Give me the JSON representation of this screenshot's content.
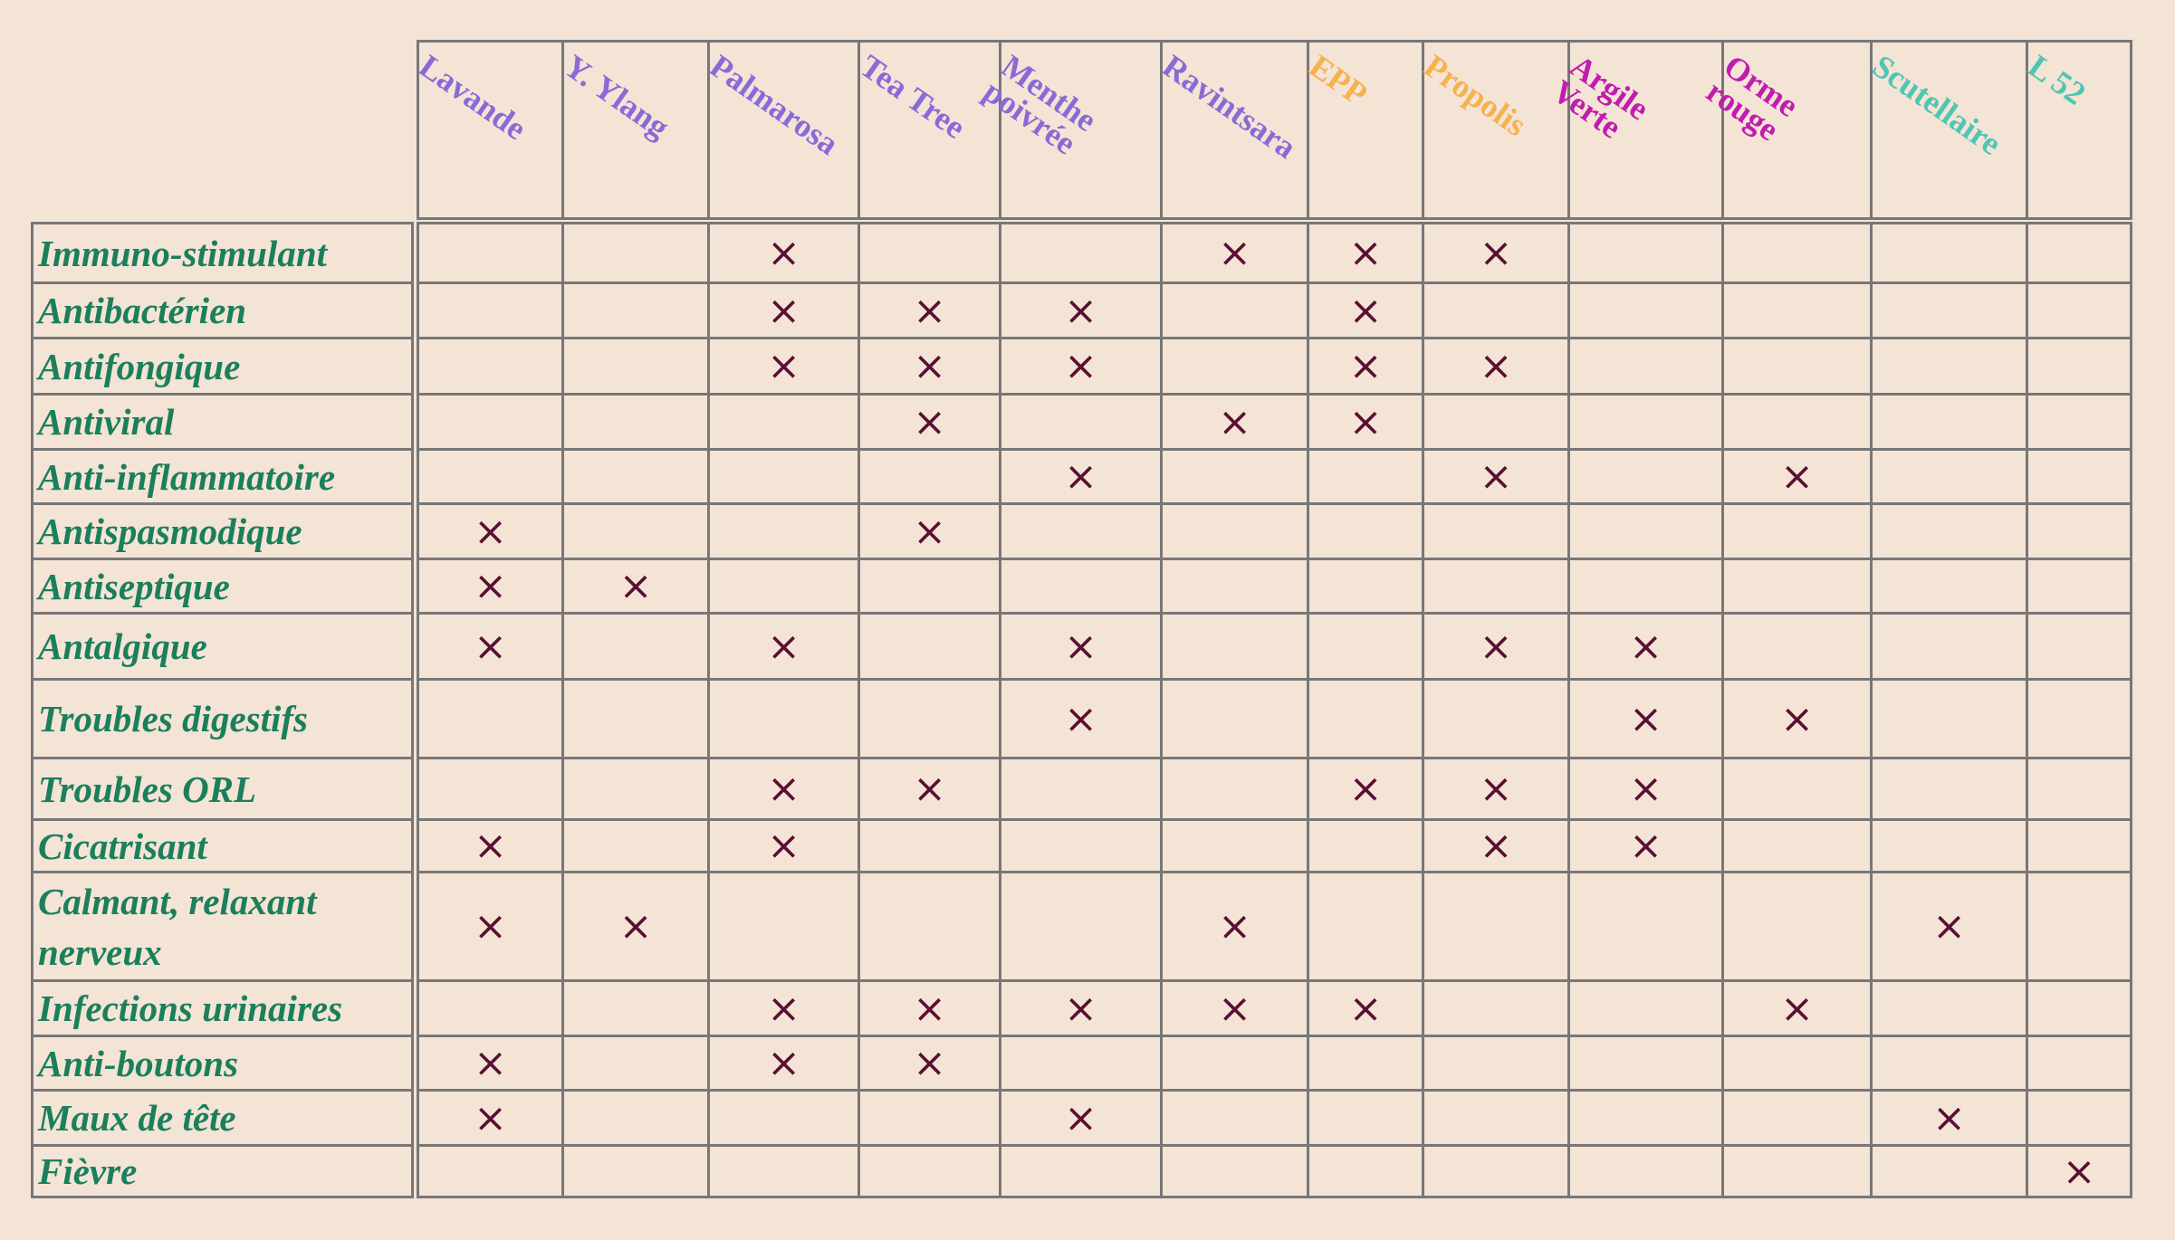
{
  "table": {
    "columns": [
      {
        "label": "Lavande",
        "color": "#8a6ad6"
      },
      {
        "label": "Y. Ylang",
        "color": "#8a6ad6"
      },
      {
        "label": "Palmarosa",
        "color": "#8a6ad6"
      },
      {
        "label": "Tea Tree",
        "color": "#8a6ad6"
      },
      {
        "label": "Menthe poivrée",
        "color": "#8a6ad6"
      },
      {
        "label": "Ravintsara",
        "color": "#8a6ad6"
      },
      {
        "label": "EPP",
        "color": "#f6b24e"
      },
      {
        "label": "Propolis",
        "color": "#f6b24e"
      },
      {
        "label": "Argile Verte",
        "color": "#c01db0"
      },
      {
        "label": "Orme rouge",
        "color": "#c01db0"
      },
      {
        "label": "Scutellaire",
        "color": "#4fc6b3"
      },
      {
        "label": "L 52",
        "color": "#4fc6b3"
      }
    ],
    "row_color": "#1b7f5c",
    "mark_color": "#5a0f33",
    "rows": [
      {
        "label": "Immuno-stimulant",
        "cells": [
          null,
          null,
          "×",
          null,
          null,
          "×",
          "×",
          "×",
          null,
          null,
          null,
          null
        ]
      },
      {
        "label": "Antibactérien",
        "cells": [
          null,
          null,
          "×",
          "×",
          "×",
          null,
          "×",
          null,
          null,
          null,
          null,
          null
        ]
      },
      {
        "label": "Antifongique",
        "cells": [
          null,
          null,
          "×",
          "×",
          "×",
          null,
          "×",
          "×",
          null,
          null,
          null,
          null
        ]
      },
      {
        "label": "Antiviral",
        "cells": [
          null,
          null,
          null,
          "×",
          null,
          "×",
          "×",
          null,
          null,
          null,
          null,
          null
        ]
      },
      {
        "label": "Anti-inflammatoire",
        "cells": [
          null,
          null,
          null,
          null,
          "×",
          null,
          null,
          "×",
          null,
          "×",
          null,
          null
        ]
      },
      {
        "label": "Antispasmodique",
        "cells": [
          "×",
          null,
          null,
          "×",
          null,
          null,
          null,
          null,
          null,
          null,
          null,
          null
        ]
      },
      {
        "label": "Antiseptique",
        "cells": [
          "×",
          "×",
          null,
          null,
          null,
          null,
          null,
          null,
          null,
          null,
          null,
          null
        ]
      },
      {
        "label": "Antalgique",
        "cells": [
          "×",
          null,
          "×",
          null,
          "×",
          null,
          null,
          "×",
          "×",
          null,
          null,
          null
        ]
      },
      {
        "label": "Troubles digestifs",
        "cells": [
          null,
          null,
          null,
          null,
          "×",
          null,
          null,
          null,
          "×",
          "×",
          null,
          null
        ]
      },
      {
        "label": "Troubles ORL",
        "cells": [
          null,
          null,
          "×",
          "×",
          null,
          null,
          "×",
          "×",
          "×",
          null,
          null,
          null
        ]
      },
      {
        "label": "Cicatrisant",
        "cells": [
          "×",
          null,
          "×",
          null,
          null,
          null,
          null,
          "×",
          "×",
          null,
          null,
          null
        ]
      },
      {
        "label": "Calmant, relaxant nerveux",
        "cells": [
          "×",
          "×",
          null,
          null,
          null,
          "×",
          null,
          null,
          null,
          null,
          "×",
          null
        ]
      },
      {
        "label": "Infections urinaires",
        "cells": [
          null,
          null,
          "×",
          "×",
          "×",
          "×",
          "×",
          null,
          null,
          "×",
          null,
          null
        ]
      },
      {
        "label": "Anti-boutons",
        "cells": [
          "×",
          null,
          "×",
          "×",
          null,
          null,
          null,
          null,
          null,
          null,
          null,
          null
        ]
      },
      {
        "label": "Maux de tête",
        "cells": [
          "×",
          null,
          null,
          null,
          "×",
          null,
          null,
          null,
          null,
          null,
          "×",
          null
        ]
      },
      {
        "label": "Fièvre",
        "cells": [
          null,
          null,
          null,
          null,
          null,
          null,
          null,
          null,
          null,
          null,
          null,
          "×"
        ]
      }
    ]
  }
}
